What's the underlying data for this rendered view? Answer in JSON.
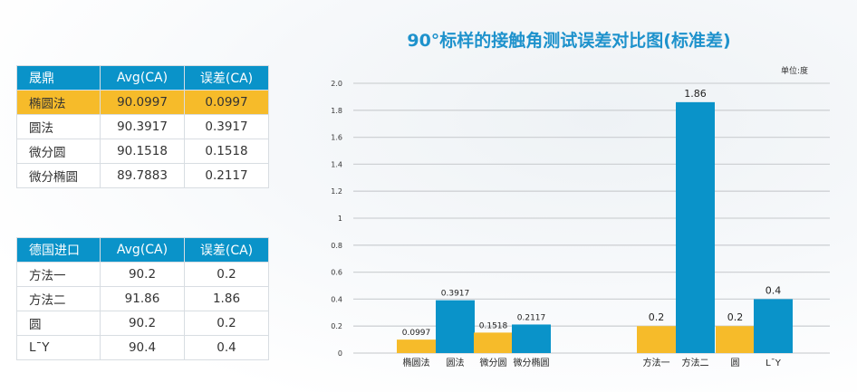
{
  "table1": {
    "headers": [
      "晟鼎",
      "Avg(CA)",
      "误差(CA)"
    ],
    "rows": [
      [
        "椭圆法",
        "90.0997",
        "0.0997"
      ],
      [
        "圆法",
        "90.3917",
        "0.3917"
      ],
      [
        "微分圆",
        "90.1518",
        "0.1518"
      ],
      [
        "微分椭圆",
        "89.7883",
        "0.2117"
      ]
    ]
  },
  "table2": {
    "headers": [
      "德国进口",
      "Avg(CA)",
      "误差(CA)"
    ],
    "rows": [
      [
        "方法一",
        "90.2",
        "0.2"
      ],
      [
        "方法二",
        "91.86",
        "1.86"
      ],
      [
        "圆",
        "90.2",
        "0.2"
      ],
      [
        "L¯Y",
        "90.4",
        "0.4"
      ]
    ]
  },
  "chart_data": {
    "type": "bar",
    "title": "90°标样的接触角测试误差对比图(标准差)",
    "unit": "单位:度",
    "ylim": [
      0,
      2.0
    ],
    "yticks": [
      "0",
      "0.2",
      "0.4",
      "0.6",
      "0.8",
      "1",
      "1.2",
      "1.4",
      "1.6",
      "1.8",
      "2.0"
    ],
    "grid": true,
    "categories": [
      "椭圆法",
      "圆法",
      "微分圆",
      "微分椭圆",
      "方法一",
      "方法二",
      "圆",
      "L¯Y"
    ],
    "values": [
      0.0997,
      0.3917,
      0.1518,
      0.2117,
      0.2,
      1.86,
      0.2,
      0.4
    ],
    "labels": [
      "0.0997",
      "0.3917",
      "0.1518",
      "0.2117",
      "0.2",
      "1.86",
      "0.2",
      "0.4"
    ],
    "colors": [
      "#f6bb2a",
      "#0a93c9",
      "#f6bb2a",
      "#0a93c9",
      "#f6bb2a",
      "#0a93c9",
      "#f6bb2a",
      "#0a93c9"
    ]
  }
}
